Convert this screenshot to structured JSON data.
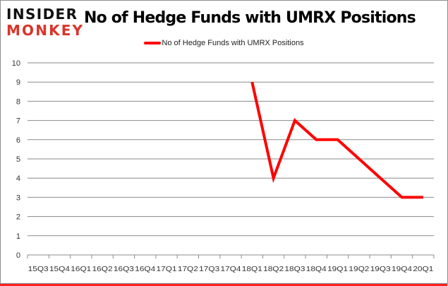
{
  "logo": {
    "line1": "INSIDER",
    "line2": "MONKEY"
  },
  "chart_data": {
    "type": "line",
    "title": "No of Hedge Funds with UMRX Positions",
    "categories": [
      "15Q3",
      "15Q4",
      "16Q1",
      "16Q2",
      "16Q3",
      "16Q4",
      "17Q1",
      "17Q2",
      "17Q3",
      "17Q4",
      "18Q1",
      "18Q2",
      "18Q3",
      "18Q4",
      "19Q1",
      "19Q2",
      "19Q3",
      "19Q4",
      "20Q1"
    ],
    "series": [
      {
        "name": "No of Hedge Funds with UMRX Positions",
        "color": "#ff0000",
        "values": [
          null,
          null,
          null,
          null,
          null,
          null,
          null,
          null,
          null,
          null,
          9,
          4,
          7,
          6,
          6,
          5,
          4,
          3,
          3
        ]
      }
    ],
    "ylim": [
      0,
      10
    ],
    "yticks": [
      0,
      1,
      2,
      3,
      4,
      5,
      6,
      7,
      8,
      9,
      10
    ],
    "grid": true,
    "legend": "top"
  }
}
